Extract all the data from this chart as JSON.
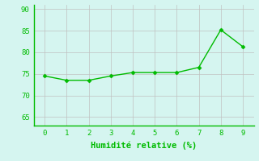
{
  "x": [
    0,
    1,
    2,
    3,
    4,
    5,
    6,
    7,
    8,
    9
  ],
  "y": [
    74.5,
    73.5,
    73.5,
    74.5,
    75.3,
    75.3,
    75.3,
    76.5,
    85.2,
    81.3
  ],
  "line_color": "#00bb00",
  "marker": "D",
  "marker_size": 2.5,
  "background_color": "#d5f5f0",
  "grid_color": "#c0c0c0",
  "xlabel": "Humidité relative (%)",
  "xlabel_color": "#00bb00",
  "tick_color": "#00bb00",
  "xlim": [
    -0.5,
    9.5
  ],
  "ylim": [
    63,
    91
  ],
  "yticks": [
    65,
    70,
    75,
    80,
    85,
    90
  ],
  "xticks": [
    0,
    1,
    2,
    3,
    4,
    5,
    6,
    7,
    8,
    9
  ],
  "spine_color": "#00bb00",
  "linewidth": 1.0
}
